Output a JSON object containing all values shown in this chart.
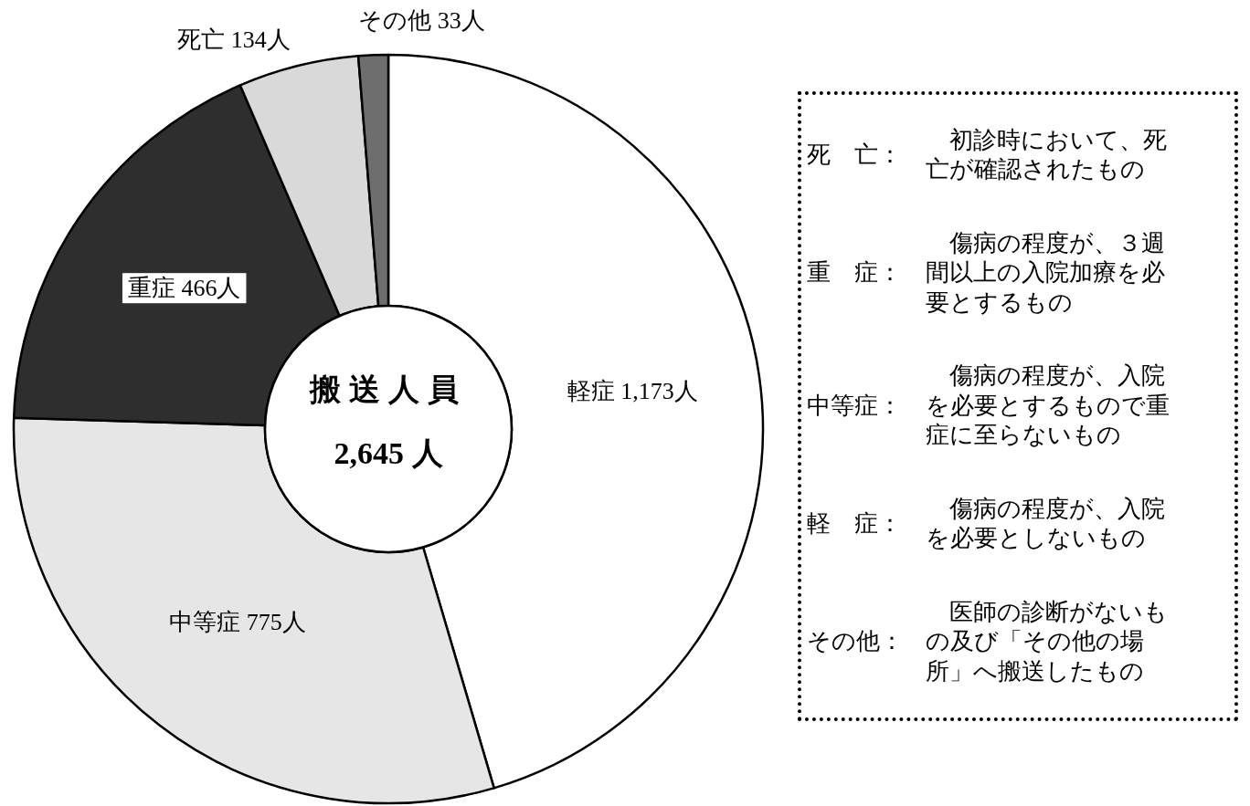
{
  "chart_data": [
    {
      "type": "donut",
      "title": "搬送人員",
      "subtitle": "2,645 人",
      "categories": [
        "軽症",
        "中等症",
        "重症",
        "死亡",
        "その他"
      ],
      "values": [
        1173,
        775,
        466,
        134,
        33
      ],
      "value_labels": [
        "1,173人",
        "775人",
        "466人",
        "134人",
        "33人"
      ],
      "colors": [
        "#ffffff",
        "#e6e6e6",
        "#2e2e2e",
        "#d9d9d9",
        "#6e6e6e"
      ]
    },
    {
      "type": "other",
      "annotations": [
        "死　亡：",
        "　初診時において、死亡が確認されたもの",
        "重　症：",
        "　傷病の程度が、３週間以上の入院加療を必要とするもの",
        "中等症：",
        "　傷病の程度が、入院を必要とするもので重症に至らないもの",
        "軽　症：",
        "　傷病の程度が、入院を必要としないもの",
        "その他：",
        "　医師の診断がないもの及び「その他の場所」へ搬送したもの"
      ]
    }
  ]
}
